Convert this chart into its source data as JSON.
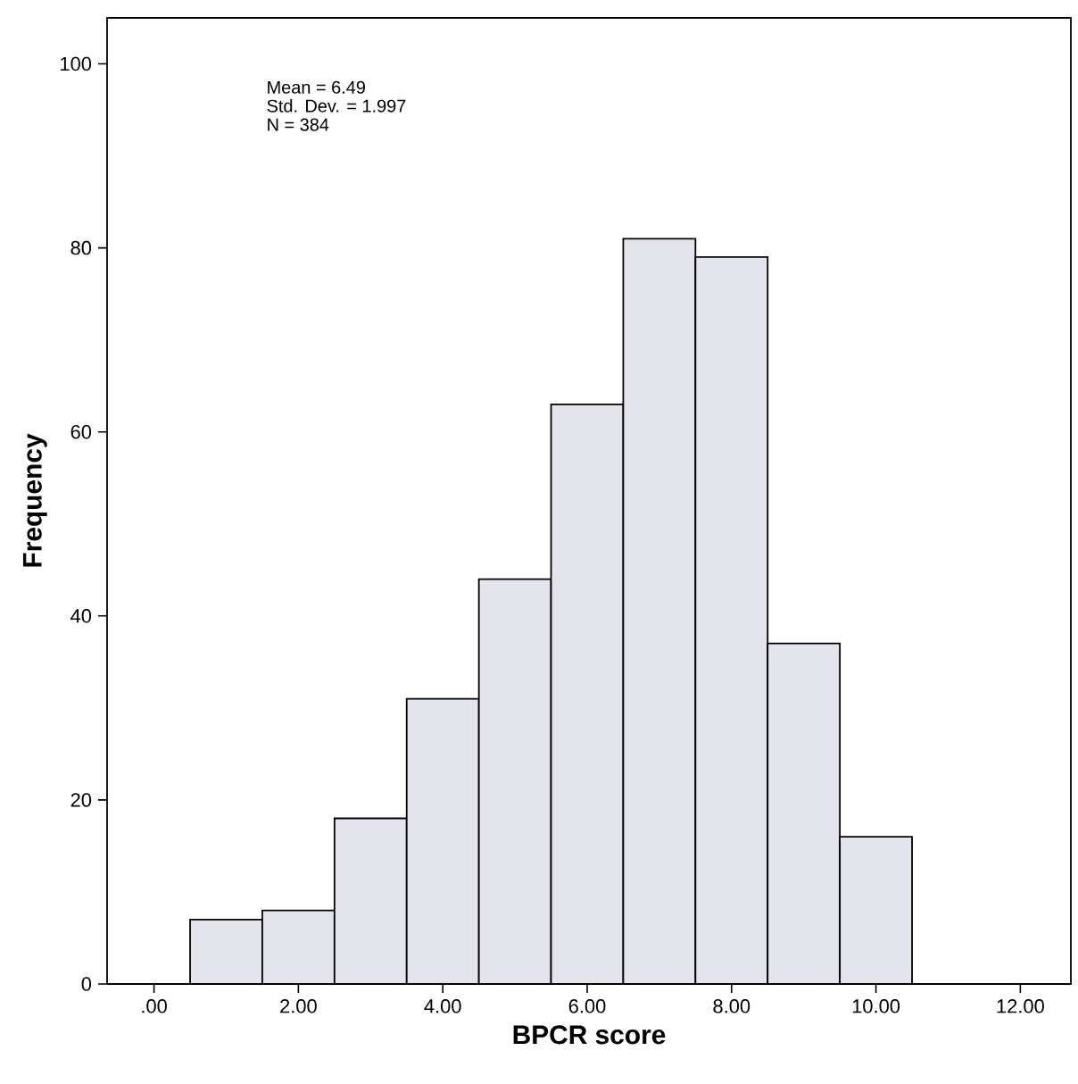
{
  "chart_data": {
    "type": "histogram",
    "xlabel": "BPCR score",
    "ylabel": "Frequency",
    "bins": [
      0.5,
      1.5,
      2.5,
      3.5,
      4.5,
      5.5,
      6.5,
      7.5,
      8.5,
      9.5,
      10.5
    ],
    "values": [
      7,
      8,
      18,
      31,
      44,
      63,
      81,
      79,
      37,
      16
    ],
    "color": "#e4e4ec",
    "xlim": [
      -0.65,
      12.7
    ],
    "ylim": [
      0,
      105
    ],
    "xticks": [
      {
        "value": 0,
        "label": ".00"
      },
      {
        "value": 2,
        "label": "2.00"
      },
      {
        "value": 4,
        "label": "4.00"
      },
      {
        "value": 6,
        "label": "6.00"
      },
      {
        "value": 8,
        "label": "8.00"
      },
      {
        "value": 10,
        "label": "10.00"
      },
      {
        "value": 12,
        "label": "12.00"
      }
    ],
    "yticks": [
      0,
      20,
      40,
      60,
      80,
      100
    ],
    "annotations": [
      "Mean = 6.49",
      "Std. Dev. = 1.997",
      "N = 384"
    ]
  }
}
